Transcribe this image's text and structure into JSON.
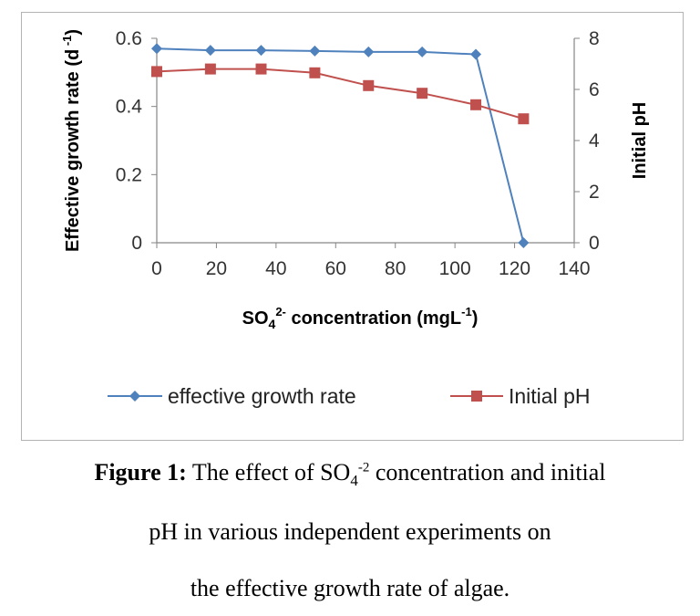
{
  "chart_data": {
    "type": "line",
    "x": [
      0,
      18,
      35,
      53,
      71,
      89,
      107,
      123
    ],
    "xlim": [
      0,
      140
    ],
    "x_ticks": [
      0,
      20,
      40,
      60,
      80,
      100,
      120,
      140
    ],
    "xlabel": {
      "base": "SO",
      "sub": "4",
      "sup": "2-",
      "rest": " concentration (mgL",
      "unit_sup": "-1",
      "end": ")"
    },
    "ylabel_left": {
      "text": "Effective growth rate (d",
      "sup": " -1",
      "end": ")"
    },
    "ylabel_right": "Initial pH",
    "ylim_left": [
      0,
      0.6
    ],
    "ylim_right": [
      0,
      8
    ],
    "y_ticks_left": [
      "0",
      "0.2",
      "0.4",
      "0.6"
    ],
    "y_ticks_right": [
      "0",
      "2",
      "4",
      "6",
      "8"
    ],
    "grid": false,
    "legend_position": "bottom",
    "series": [
      {
        "name": "effective growth rate",
        "axis": "left",
        "color": "#4f81bd",
        "marker": "diamond",
        "values": [
          0.57,
          0.565,
          0.565,
          0.563,
          0.56,
          0.56,
          0.553,
          0.0
        ]
      },
      {
        "name": "Initial pH",
        "axis": "right",
        "color": "#c0504d",
        "marker": "square",
        "values": [
          6.7,
          6.8,
          6.8,
          6.65,
          6.15,
          5.85,
          5.4,
          4.85
        ]
      }
    ]
  },
  "caption": {
    "label": "Figure 1:",
    "line1_a": " The effect of SO",
    "line1_sub": "4",
    "line1_sup": "-2",
    "line1_b": " concentration and initial",
    "line2": "pH in various independent experiments on",
    "line3": "the effective growth rate of algae."
  }
}
